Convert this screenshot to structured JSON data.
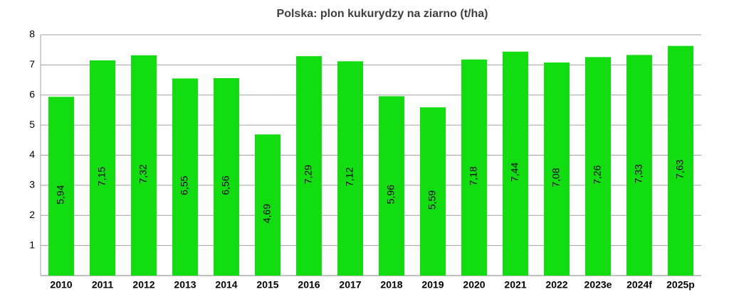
{
  "chart_data": {
    "type": "bar",
    "title": "Polska: plon kukurydzy na ziarno  (t/ha)",
    "categories": [
      "2010",
      "2011",
      "2012",
      "2013",
      "2014",
      "2015",
      "2016",
      "2017",
      "2018",
      "2019",
      "2020",
      "2021",
      "2022",
      "2023e",
      "2024f",
      "2025p"
    ],
    "values": [
      5.94,
      7.15,
      7.32,
      6.55,
      6.56,
      4.69,
      7.29,
      7.12,
      5.96,
      5.59,
      7.18,
      7.44,
      7.08,
      7.26,
      7.33,
      7.63
    ],
    "value_labels": [
      "5,94",
      "7,15",
      "7,32",
      "6,55",
      "6,56",
      "4,69",
      "7,29",
      "7,12",
      "5,96",
      "5,59",
      "7,18",
      "7,44",
      "7,08",
      "7,26",
      "7,33",
      "7,63"
    ],
    "color": "#11dd11",
    "ylim": [
      0,
      8
    ],
    "yticks": [
      1,
      2,
      3,
      4,
      5,
      6,
      7,
      8
    ],
    "grid": true
  }
}
